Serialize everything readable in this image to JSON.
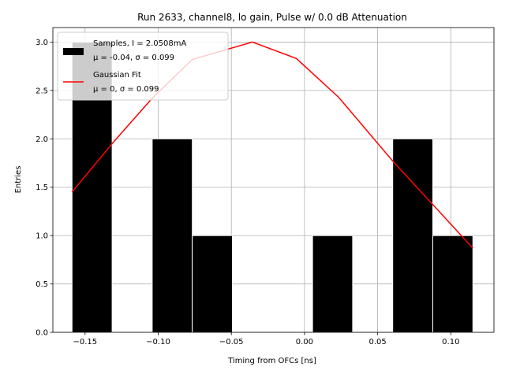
{
  "chart_data": {
    "type": "bar",
    "title": "Run 2633, channel8, lo gain, Pulse w/ 0.0 dB Attenuation",
    "xlabel": "Timing from OFCs [ns]",
    "ylabel": "Entries",
    "xlim": [
      -0.172,
      0.1295
    ],
    "ylim": [
      0,
      3.15
    ],
    "grid": true,
    "xticks": [
      -0.15,
      -0.1,
      -0.05,
      0.0,
      0.05,
      0.1
    ],
    "xtick_labels": [
      "−0.15",
      "−0.10",
      "−0.05",
      "0.00",
      "0.05",
      "0.10"
    ],
    "yticks": [
      0.0,
      0.5,
      1.0,
      1.5,
      2.0,
      2.5,
      3.0
    ],
    "ytick_labels": [
      "0.0",
      "0.5",
      "1.0",
      "1.5",
      "2.0",
      "2.5",
      "3.0"
    ],
    "histogram": {
      "name": "Samples",
      "color": "#000000",
      "bins": [
        {
          "left": -0.1589,
          "right": -0.1315,
          "count": 3
        },
        {
          "left": -0.1315,
          "right": -0.1041,
          "count": 0
        },
        {
          "left": -0.1041,
          "right": -0.0767,
          "count": 2
        },
        {
          "left": -0.0767,
          "right": -0.0493,
          "count": 1
        },
        {
          "left": -0.0493,
          "right": -0.0219,
          "count": 0
        },
        {
          "left": -0.0219,
          "right": 0.0055,
          "count": 0
        },
        {
          "left": 0.0055,
          "right": 0.0329,
          "count": 1
        },
        {
          "left": 0.0329,
          "right": 0.0603,
          "count": 0
        },
        {
          "left": 0.0603,
          "right": 0.0877,
          "count": 2
        },
        {
          "left": 0.0877,
          "right": 0.1151,
          "count": 1
        }
      ]
    },
    "fit": {
      "name": "Gaussian Fit",
      "color": "#ff0000",
      "x": [
        -0.1589,
        -0.1315,
        -0.1041,
        -0.0767,
        -0.0356,
        -0.0055,
        0.0233,
        0.0603,
        0.0877,
        0.1151
      ],
      "y": [
        1.45,
        1.95,
        2.42,
        2.82,
        3.0,
        2.83,
        2.43,
        1.77,
        1.32,
        0.87
      ]
    },
    "legend": {
      "position": "top-left",
      "entries": [
        {
          "line1": "Samples, I = 2.0508mA",
          "line2": "μ = -0.04, σ = 0.099",
          "kind": "patch",
          "color": "#000000"
        },
        {
          "line1": "Gaussian Fit",
          "line2": "μ = 0, σ = 0.099",
          "kind": "line",
          "color": "#ff0000"
        }
      ]
    }
  }
}
